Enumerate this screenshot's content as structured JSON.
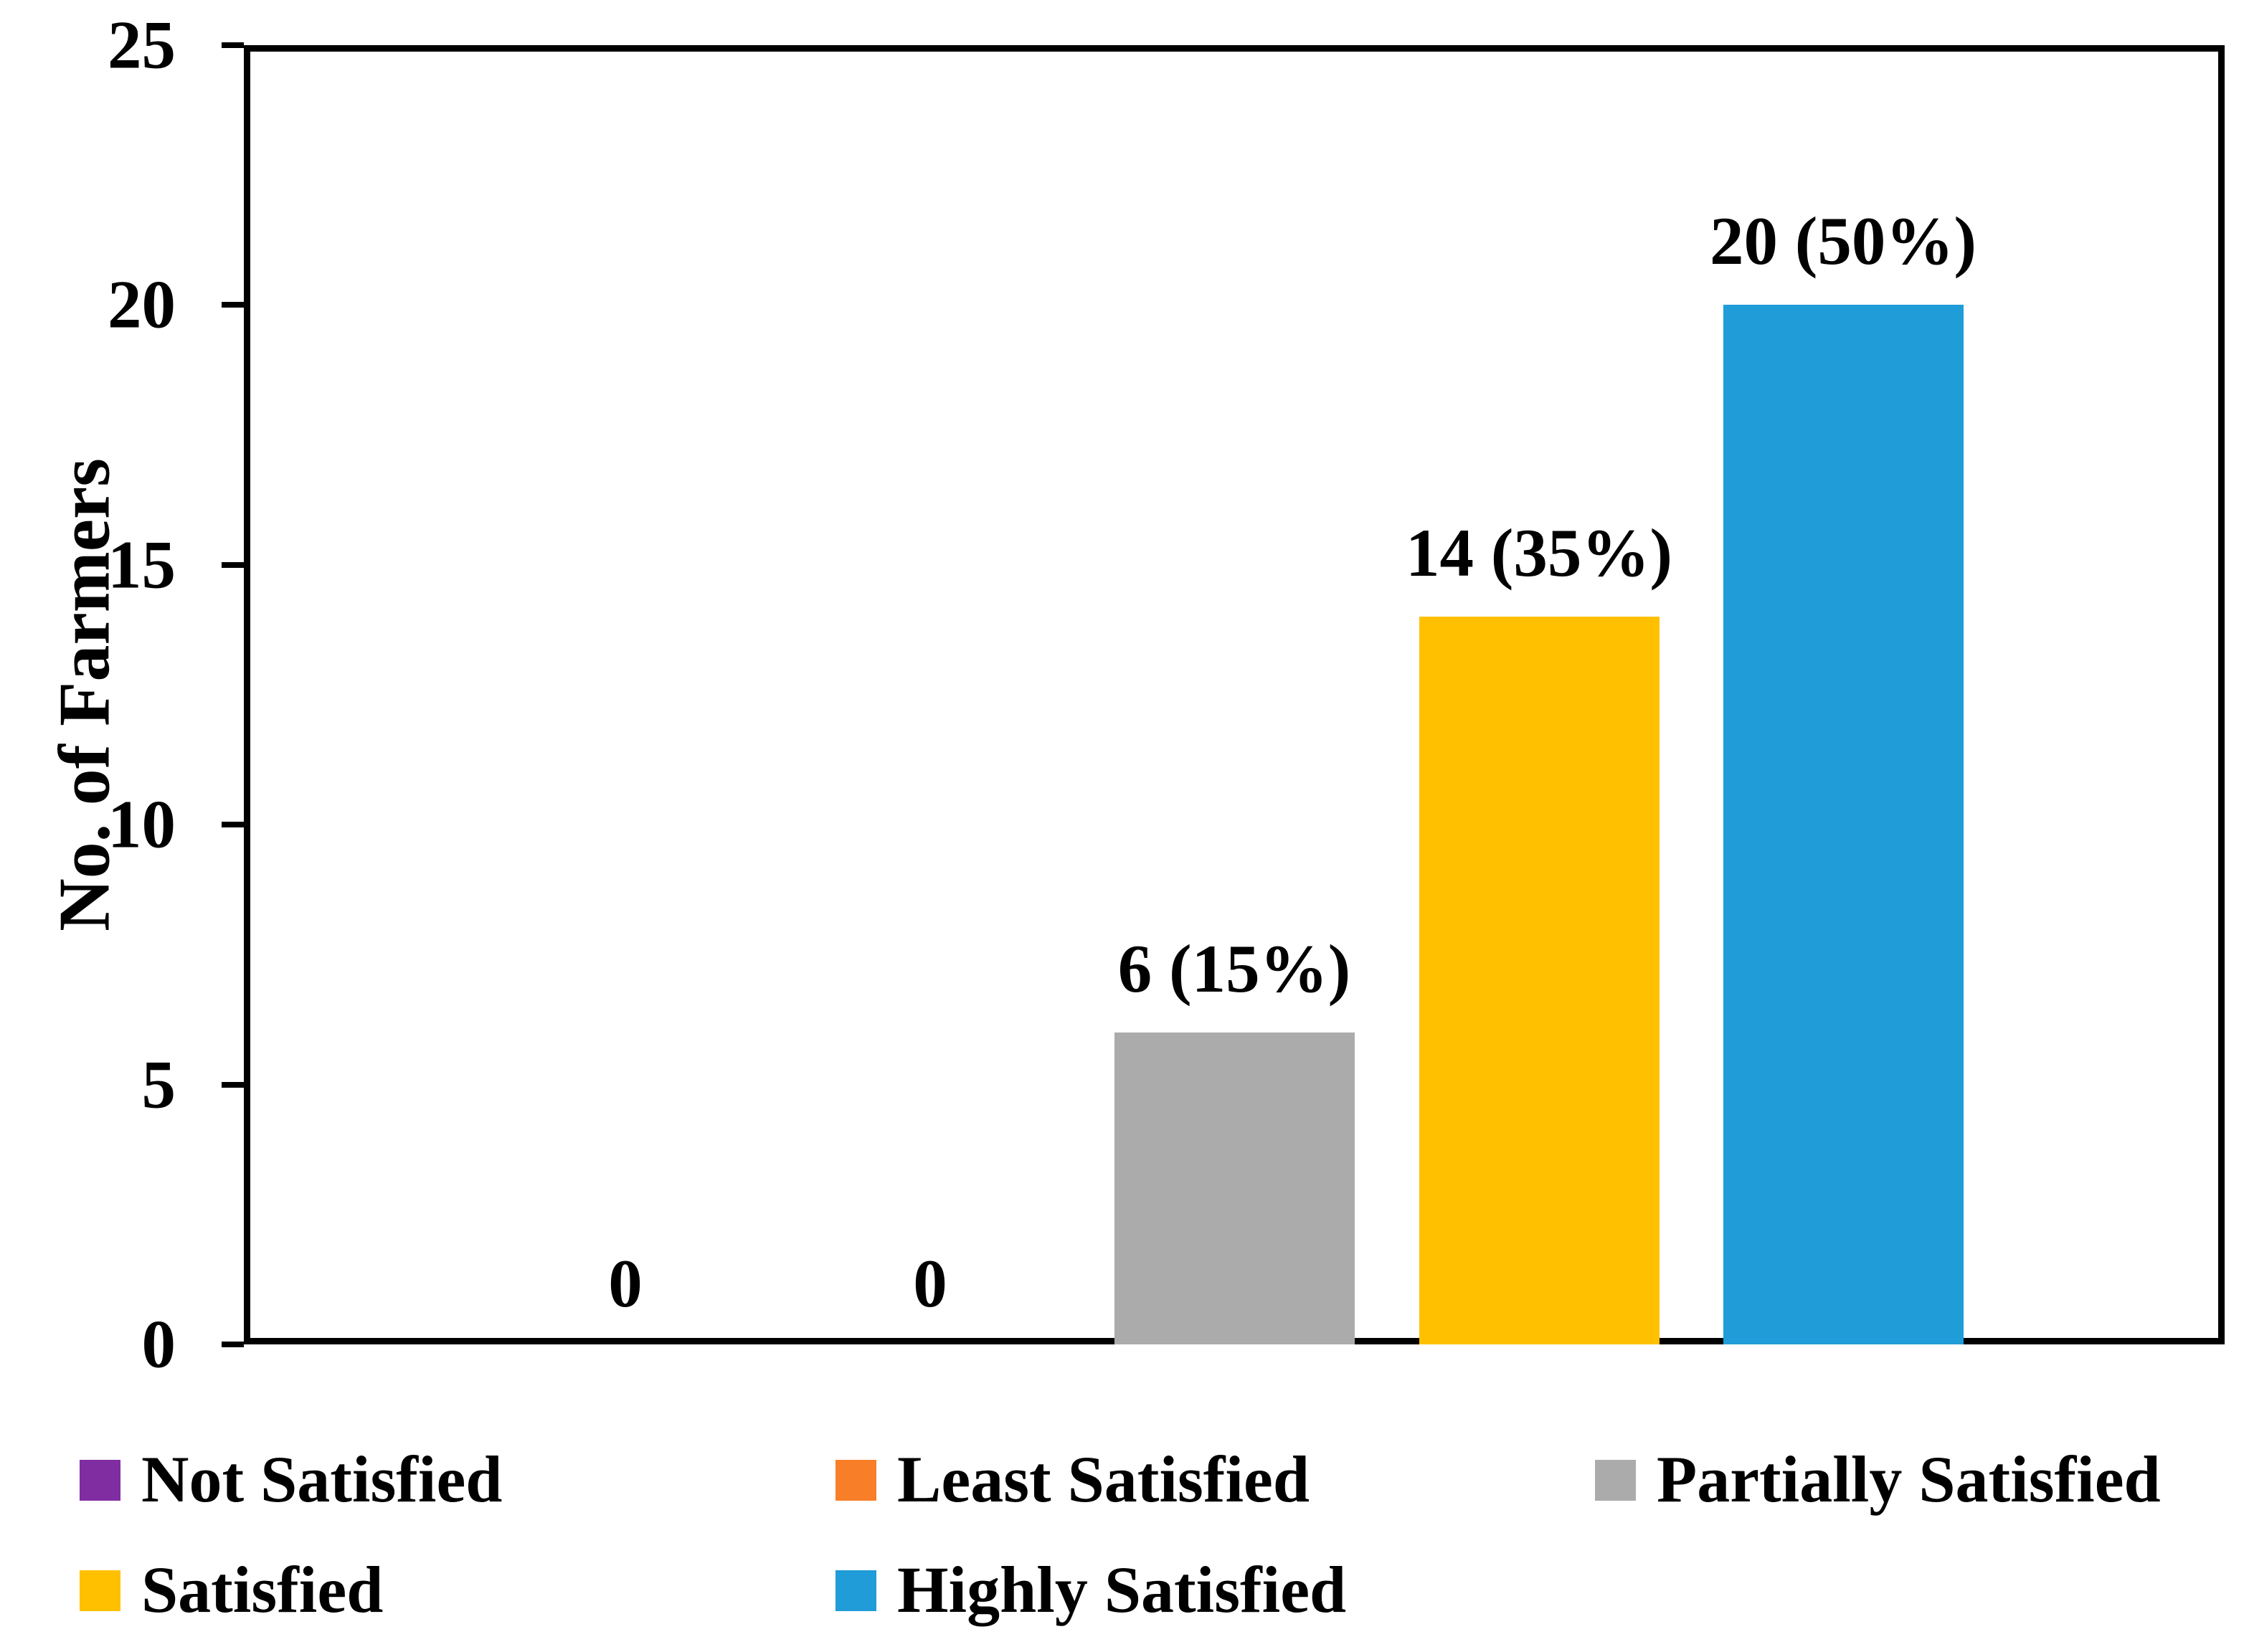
{
  "chart_data": {
    "type": "bar",
    "title": "",
    "ylabel": "No. of Farmers",
    "xlabel": "",
    "categories": [
      "Not Satisfied",
      "Least Satisfied",
      "Partially Satisfied",
      "Satisfied",
      "Highly Satisfied"
    ],
    "values": [
      0,
      0,
      6,
      14,
      20
    ],
    "data_labels": [
      "0",
      "0",
      "6 (15%)",
      "14 (35%)",
      "20 (50%)"
    ],
    "bar_colors": [
      "#802DA2",
      "#F87F28",
      "#ABABAB",
      "#FFC000",
      "#209CD8"
    ],
    "ylim": [
      0,
      25
    ],
    "yticks": [
      0,
      5,
      10,
      15,
      20,
      25
    ],
    "grid": false,
    "legend_position": "bottom"
  },
  "legend": {
    "items": [
      {
        "label": "Not Satisfied",
        "color": "#802DA2"
      },
      {
        "label": "Least Satisfied",
        "color": "#F87F28"
      },
      {
        "label": "Partially Satisfied",
        "color": "#ABABAB"
      },
      {
        "label": "Satisfied",
        "color": "#FFC000"
      },
      {
        "label": "Highly Satisfied",
        "color": "#209CD8"
      }
    ]
  },
  "colors": {
    "axis": "#000000",
    "text": "#000000",
    "background": "#FFFFFF"
  }
}
